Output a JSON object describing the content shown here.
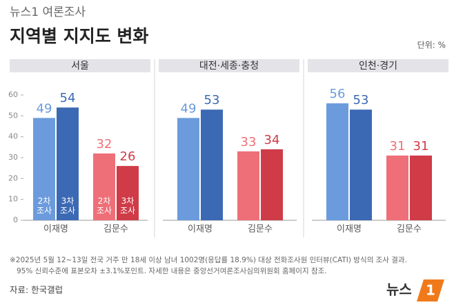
{
  "header": {
    "kicker": "뉴스1 여론조사",
    "title": "지역별 지지도 변화",
    "unit": "단위: %"
  },
  "chart_data": [
    {
      "type": "bar",
      "title": "서울",
      "categories": [
        "이재명",
        "김문수"
      ],
      "ylim": [
        0,
        60
      ],
      "yticks": [
        0,
        10,
        20,
        30,
        40,
        50,
        60
      ],
      "series": [
        {
          "name": "2차 조사",
          "colors": [
            "#6b9bdc",
            "#ee6f78"
          ],
          "values": [
            49,
            32
          ]
        },
        {
          "name": "3차 조사",
          "colors": [
            "#3b69b4",
            "#cf3b47"
          ],
          "values": [
            54,
            26
          ]
        }
      ]
    },
    {
      "type": "bar",
      "title": "대전·세종·충청",
      "categories": [
        "이재명",
        "김문수"
      ],
      "ylim": [
        0,
        60
      ],
      "series": [
        {
          "colors": [
            "#6b9bdc",
            "#ee6f78"
          ],
          "values": [
            49,
            33
          ]
        },
        {
          "colors": [
            "#3b69b4",
            "#cf3b47"
          ],
          "values": [
            53,
            34
          ]
        }
      ]
    },
    {
      "type": "bar",
      "title": "인천·경기",
      "categories": [
        "이재명",
        "김문수"
      ],
      "ylim": [
        0,
        60
      ],
      "series": [
        {
          "colors": [
            "#6b9bdc",
            "#ee6f78"
          ],
          "values": [
            56,
            31
          ]
        },
        {
          "colors": [
            "#3b69b4",
            "#cf3b47"
          ],
          "values": [
            53,
            31
          ]
        }
      ]
    }
  ],
  "footnotes": [
    "※2025년 5월 12~13일 전국 거주 만 18세 이상 남녀 1002명(응답률 18.9%) 대상 전화조사원 인터뷰(CATI) 방식의 조사 결과.",
    "95% 신뢰수준에 표본오차 ±3.1%포인트. 자세한 내용은 중앙선거여론조사심의위원회 홈페이지 참조."
  ],
  "source": "자료: 한국갤럽",
  "logo": {
    "text": "뉴스",
    "mark": "1"
  }
}
